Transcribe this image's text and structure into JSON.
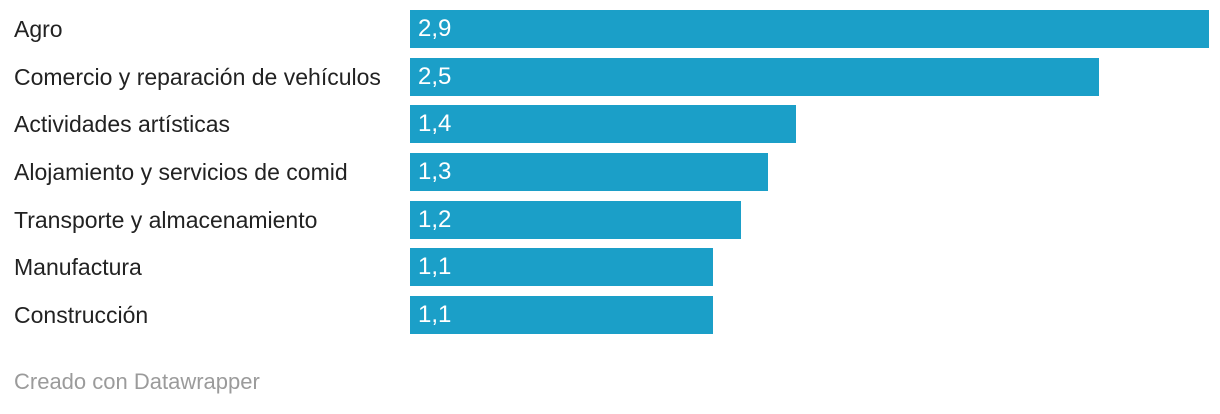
{
  "page": {
    "background": "#ffffff"
  },
  "chart_data": {
    "type": "bar",
    "orientation": "horizontal",
    "title": "",
    "xlabel": "",
    "ylabel": "",
    "categories": [
      "Agro",
      "Comercio y reparación de vehículos",
      "Actividades artísticas",
      "Alojamiento y servicios de comid",
      "Transporte y almacenamiento",
      "Manufactura",
      "Construcción"
    ],
    "values": [
      2.9,
      2.5,
      1.4,
      1.3,
      1.2,
      1.1,
      1.1
    ],
    "value_labels": [
      "2,9",
      "2,5",
      "1,4",
      "1,3",
      "1,2",
      "1,1",
      "1,1"
    ],
    "xlim": [
      0,
      2.94
    ],
    "grid": false,
    "legend": false,
    "bar_color": "#1b9fc8",
    "category_label_color": "#222222",
    "value_label_color": "#ffffff"
  },
  "footer": {
    "credit": "Creado con Datawrapper",
    "color": "#9b9b9b"
  }
}
